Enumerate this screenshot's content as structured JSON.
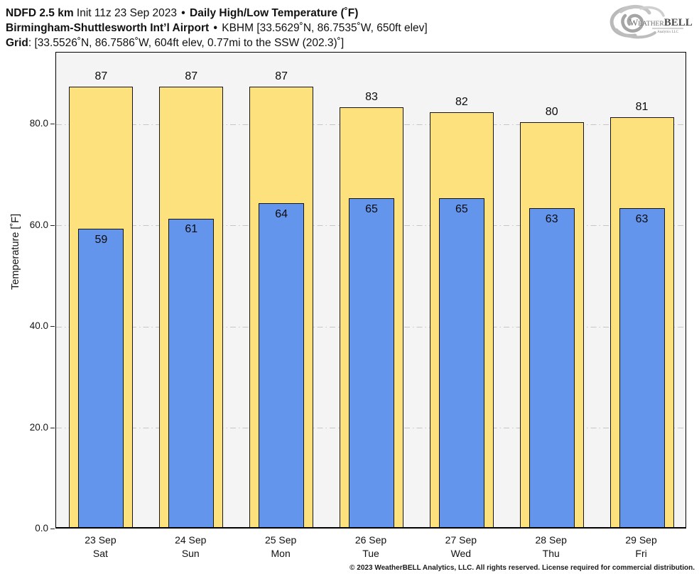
{
  "header": {
    "line1": {
      "model": "NDFD 2.5 km",
      "init": " Init 11z 23 Sep 2023 ",
      "sep": "•",
      "product": " Daily High/Low Temperature (˚F)"
    },
    "line2": {
      "station": "Birmingham-Shuttlesworth Int’l Airport",
      "sep": "•",
      "details": " KBHM [33.5629˚N, 86.7535˚W, 650ft elev]"
    },
    "line3": {
      "label": "Grid",
      "details": ": [33.5526˚N, 86.7586˚W, 604ft elev, 0.77mi to the SSW (202.3)˚]"
    }
  },
  "logo": {
    "weather": "Weather",
    "bell": "BELL",
    "sub": "Analytics LLC"
  },
  "chart_data": {
    "type": "bar",
    "title": "Daily High/Low Temperature (˚F)",
    "categories": [
      {
        "date": "23 Sep",
        "day": "Sat"
      },
      {
        "date": "24 Sep",
        "day": "Sun"
      },
      {
        "date": "25 Sep",
        "day": "Mon"
      },
      {
        "date": "26 Sep",
        "day": "Tue"
      },
      {
        "date": "27 Sep",
        "day": "Wed"
      },
      {
        "date": "28 Sep",
        "day": "Thu"
      },
      {
        "date": "29 Sep",
        "day": "Fri"
      }
    ],
    "series": [
      {
        "name": "High",
        "color": "#fce17d",
        "values": [
          87,
          87,
          87,
          83,
          82,
          80,
          81
        ]
      },
      {
        "name": "Low",
        "color": "#6495ed",
        "values": [
          59,
          61,
          64,
          65,
          65,
          63,
          63
        ]
      }
    ],
    "xlabel": "",
    "ylabel": "Temperature [˚F]",
    "ylim": [
      0,
      94.2
    ],
    "yticks": [
      {
        "value": 0,
        "label": "0.0"
      },
      {
        "value": 20,
        "label": "20.0"
      },
      {
        "value": 40,
        "label": "40.0"
      },
      {
        "value": 60,
        "label": "60.0"
      },
      {
        "value": 80,
        "label": "80.0"
      }
    ],
    "grid": "horizontal dash-dot",
    "grid_color": "#c6c6c6",
    "plot_bg": "#f4f4f4",
    "legend": "none"
  },
  "footer": {
    "copyright": "© 2023 WeatherBELL Analytics, LLC. All rights reserved. License required for commercial distribution."
  }
}
